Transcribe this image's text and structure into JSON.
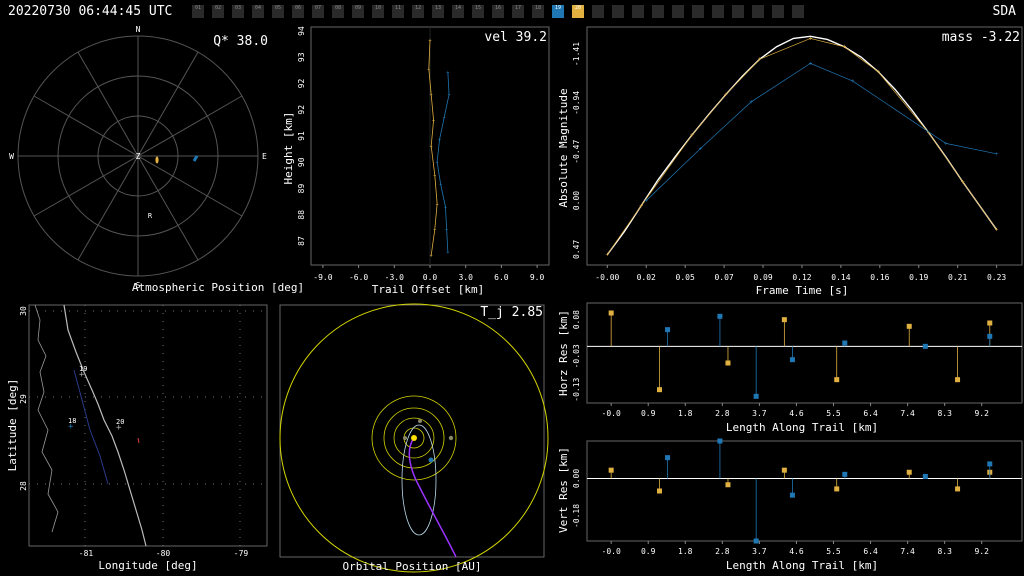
{
  "header": {
    "datetime": "20220730 06:44:45 UTC",
    "org": "SDA",
    "stations": [
      "01",
      "02",
      "03",
      "04",
      "05",
      "06",
      "07",
      "08",
      "09",
      "10",
      "11",
      "12",
      "13",
      "14",
      "15",
      "16",
      "17",
      "18",
      "19",
      "20",
      "",
      "",
      "",
      "",
      "",
      "",
      "",
      "",
      "",
      "",
      ""
    ],
    "active_blue": "19",
    "active_yellow": "20"
  },
  "colors": {
    "blue": "#1f77b4",
    "yellow": "#e0b040",
    "grid": "#555555",
    "fit": "#ffffff",
    "coast": "#bbbbbb",
    "orbit": "#d4d400",
    "purple": "#9933ff"
  },
  "chart_data": [
    {
      "type": "scatter",
      "id": "atmospheric-position",
      "xlabel": "Atmospheric Position [deg]",
      "annotation": "Q* 38.0",
      "compass": [
        "N",
        "S",
        "W",
        "E",
        "Z",
        "R"
      ]
    },
    {
      "type": "line",
      "id": "trail-height",
      "xlabel": "Trail Offset [km]",
      "ylabel": "Height [km]",
      "annotation": "vel 39.2",
      "xlim": [
        -10,
        10
      ],
      "ylim": [
        86.8,
        94.2
      ],
      "xticks": [
        "-9.0",
        "-6.0",
        "-3.0",
        "0.0",
        "3.0",
        "6.0",
        "9.0"
      ],
      "yticks": [
        "87",
        "88",
        "89",
        "90",
        "91",
        "92",
        "92",
        "93",
        "94"
      ],
      "series": [
        {
          "color": "yellow",
          "x": [
            0.0,
            -0.1,
            0.1,
            0.3,
            0.1,
            0.4,
            0.6,
            0.4,
            0.1
          ],
          "y": [
            93.8,
            92.9,
            92.1,
            91.3,
            90.5,
            89.6,
            88.7,
            87.9,
            87.1
          ]
        },
        {
          "color": "blue",
          "x": [
            1.5,
            1.6,
            1.2,
            0.8,
            0.6,
            0.9,
            1.3,
            1.4,
            1.5
          ],
          "y": [
            92.8,
            92.1,
            91.4,
            90.7,
            90.0,
            89.3,
            88.6,
            87.9,
            87.2
          ]
        }
      ]
    },
    {
      "type": "line",
      "id": "light-curve",
      "xlabel": "Frame Time [s]",
      "ylabel": "Absolute Magnitude",
      "annotation": "mass -3.22",
      "xlim": [
        -0.012,
        0.245
      ],
      "ylim": [
        0.62,
        -1.67
      ],
      "xticks": [
        "-0.00",
        "0.02",
        "0.05",
        "0.07",
        "0.09",
        "0.12",
        "0.14",
        "0.16",
        "0.19",
        "0.21",
        "0.23"
      ],
      "yticks": [
        "-1.41",
        "-0.94",
        "-0.47",
        "0.00",
        "0.47"
      ],
      "series": [
        {
          "name": "fit",
          "color": "fit",
          "x": [
            0.0,
            0.01,
            0.02,
            0.03,
            0.04,
            0.05,
            0.06,
            0.07,
            0.08,
            0.09,
            0.1,
            0.11,
            0.12,
            0.13,
            0.14,
            0.15,
            0.16,
            0.17,
            0.18,
            0.19,
            0.2,
            0.21,
            0.22,
            0.23
          ],
          "y": [
            0.52,
            0.3,
            0.05,
            -0.2,
            -0.42,
            -0.63,
            -0.83,
            -1.02,
            -1.2,
            -1.36,
            -1.48,
            -1.56,
            -1.58,
            -1.55,
            -1.48,
            -1.38,
            -1.24,
            -1.07,
            -0.87,
            -0.65,
            -0.42,
            -0.18,
            0.05,
            0.28
          ]
        },
        {
          "name": "yellow",
          "color": "yellow",
          "x": [
            0.0,
            0.02,
            0.05,
            0.07,
            0.09,
            0.12,
            0.14,
            0.16,
            0.19,
            0.21,
            0.23
          ],
          "y": [
            0.52,
            0.05,
            -0.63,
            -1.02,
            -1.36,
            -1.56,
            -1.48,
            -1.24,
            -0.65,
            -0.18,
            0.28
          ]
        },
        {
          "name": "blue",
          "color": "blue",
          "x": [
            0.023,
            0.055,
            0.085,
            0.12,
            0.145,
            0.2,
            0.23
          ],
          "y": [
            0.0,
            -0.5,
            -0.95,
            -1.32,
            -1.15,
            -0.55,
            -0.45
          ]
        }
      ]
    },
    {
      "type": "scatter",
      "id": "ground-track",
      "xlabel": "Longitude [deg]",
      "ylabel": "Latitude [deg]",
      "xticks": [
        "-81",
        "-80",
        "-79"
      ],
      "yticks": [
        "30",
        "29",
        "28"
      ],
      "labels": [
        "19",
        "18",
        "20"
      ]
    },
    {
      "type": "scatter",
      "id": "orbital-position",
      "xlabel": "Orbital Position [AU]",
      "annotation": "T_j 2.85"
    },
    {
      "type": "scatter",
      "id": "horz-residuals",
      "xlabel": "Length Along Trail [km]",
      "ylabel": "Horz Res [km]",
      "xlim": [
        -0.6,
        10.2
      ],
      "ylim": [
        -0.17,
        0.13
      ],
      "xticks": [
        "-0.0",
        "0.9",
        "1.8",
        "2.8",
        "3.7",
        "4.6",
        "5.5",
        "6.4",
        "7.4",
        "8.3",
        "9.2"
      ],
      "yticks": [
        "0.08",
        "-0.03",
        "-0.13"
      ],
      "series": [
        {
          "color": "yellow",
          "x": [
            0.0,
            1.2,
            2.9,
            4.3,
            5.6,
            7.4,
            8.6,
            9.4
          ],
          "y": [
            0.1,
            -0.13,
            -0.05,
            0.08,
            -0.1,
            0.06,
            -0.1,
            0.07
          ]
        },
        {
          "color": "blue",
          "x": [
            1.4,
            2.7,
            3.6,
            4.5,
            5.8,
            7.8,
            9.4
          ],
          "y": [
            0.05,
            0.09,
            -0.15,
            -0.04,
            0.01,
            0.0,
            0.03
          ]
        }
      ]
    },
    {
      "type": "scatter",
      "id": "vert-residuals",
      "xlabel": "Length Along Trail [km]",
      "ylabel": "Vert Res [km]",
      "xlim": [
        -0.6,
        10.2
      ],
      "ylim": [
        -0.3,
        0.18
      ],
      "xticks": [
        "-0.0",
        "0.9",
        "1.8",
        "2.8",
        "3.7",
        "4.6",
        "5.5",
        "6.4",
        "7.4",
        "8.3",
        "9.2"
      ],
      "yticks": [
        "0.00",
        "-0.18"
      ],
      "series": [
        {
          "color": "yellow",
          "x": [
            0.0,
            1.2,
            2.9,
            4.3,
            5.6,
            7.4,
            8.6,
            9.4
          ],
          "y": [
            0.04,
            -0.06,
            -0.03,
            0.04,
            -0.05,
            0.03,
            -0.05,
            0.03
          ]
        },
        {
          "color": "blue",
          "x": [
            1.4,
            2.7,
            3.6,
            4.5,
            5.8,
            7.8,
            9.4
          ],
          "y": [
            0.1,
            0.18,
            -0.3,
            -0.08,
            0.02,
            0.01,
            0.07
          ]
        }
      ]
    }
  ]
}
